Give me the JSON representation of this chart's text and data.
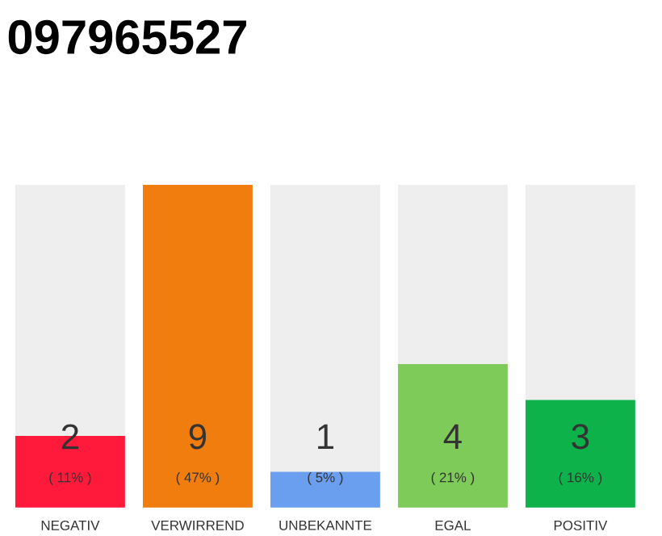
{
  "chart_data": {
    "type": "bar",
    "title": "097965527",
    "categories": [
      "NEGATIV",
      "VERWIRREND",
      "UNBEKANNTE",
      "EGAL",
      "POSITIV"
    ],
    "values": [
      2,
      9,
      1,
      4,
      3
    ],
    "colors": [
      "#ff1a3c",
      "#f07d0e",
      "#6a9ff0",
      "#7ecb5a",
      "#0db34a"
    ],
    "ylim": [
      0,
      9
    ],
    "data_labels": true,
    "annotations": [
      "( 11% )",
      "( 47% )",
      "( 5% )",
      "( 21% )",
      "( 16% )"
    ]
  }
}
